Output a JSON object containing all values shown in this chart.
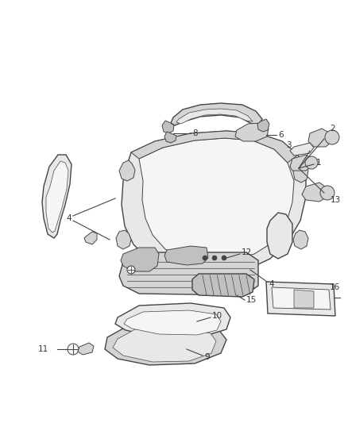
{
  "background_color": "#ffffff",
  "figure_width": 4.38,
  "figure_height": 5.33,
  "dpi": 100,
  "line_color": "#444444",
  "text_color": "#333333",
  "label_fontsize": 7.5,
  "fill_light": "#e8e8e8",
  "fill_medium": "#d4d4d4",
  "fill_dark": "#c0c0c0",
  "fill_white": "#f5f5f5"
}
